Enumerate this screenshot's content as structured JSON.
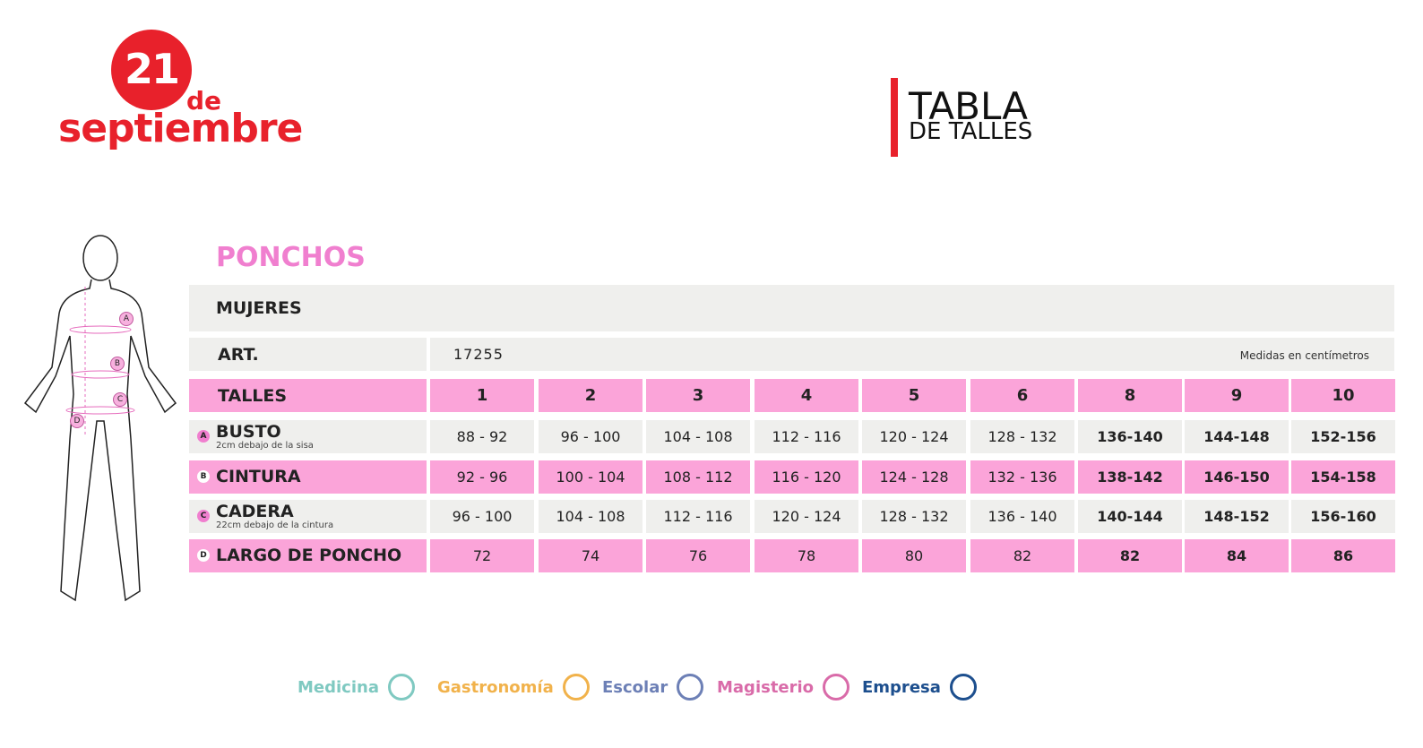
{
  "logo": {
    "number": "21",
    "line1": "de",
    "line2": "septiembre"
  },
  "header": {
    "title": "TABLA",
    "subtitle": "DE TALLES"
  },
  "section": "PONCHOS",
  "group": "MUJERES",
  "art": {
    "label": "ART.",
    "value": "17255",
    "note": "Medidas en centímetros"
  },
  "table": {
    "header_label": "TALLES",
    "sizes": [
      "1",
      "2",
      "3",
      "4",
      "5",
      "6",
      "8",
      "9",
      "10"
    ],
    "rows": [
      {
        "marker": "A",
        "name": "BUSTO",
        "note": "2cm debajo de la sisa",
        "values": [
          "88 - 92",
          "96 - 100",
          "104 - 108",
          "112 - 116",
          "120 - 124",
          "128 - 132",
          "136-140",
          "144-148",
          "152-156"
        ]
      },
      {
        "marker": "B",
        "name": "CINTURA",
        "values": [
          "92 - 96",
          "100 - 104",
          "108 - 112",
          "116 - 120",
          "124 - 128",
          "132 - 136",
          "138-142",
          "146-150",
          "154-158"
        ]
      },
      {
        "marker": "C",
        "name": "CADERA",
        "note": "22cm debajo de la cintura",
        "values": [
          "96 - 100",
          "104 - 108",
          "112 - 116",
          "120 - 124",
          "128 - 132",
          "136 - 140",
          "140-144",
          "148-152",
          "156-160"
        ]
      },
      {
        "marker": "D",
        "name": "LARGO DE PONCHO",
        "values": [
          "72",
          "74",
          "76",
          "78",
          "80",
          "82",
          "82",
          "84",
          "86"
        ]
      }
    ]
  },
  "footer": [
    {
      "name": "Medicina",
      "color": "#7fc9c1"
    },
    {
      "name": "Gastronomía",
      "color": "#f1b24b"
    },
    {
      "name": "Escolar",
      "color": "#6d80b6"
    },
    {
      "name": "Magisterio",
      "color": "#d96ba9"
    },
    {
      "name": "Empresa",
      "color": "#1d4f8e"
    }
  ]
}
